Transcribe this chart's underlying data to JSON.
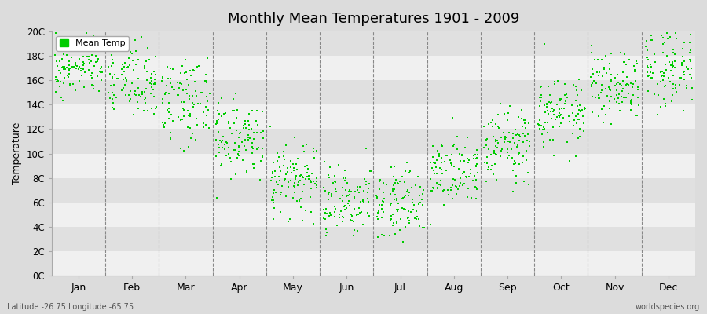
{
  "title": "Monthly Mean Temperatures 1901 - 2009",
  "ylabel": "Temperature",
  "xlabel_bottom_left": "Latitude -26.75 Longitude -65.75",
  "xlabel_bottom_right": "worldspecies.org",
  "legend_label": "Mean Temp",
  "marker_color": "#00CC00",
  "marker_size": 4.0,
  "background_color": "#DCDCDC",
  "plot_bg_color": "#F0F0F0",
  "band_color_light": "#F0F0F0",
  "band_color_dark": "#E0E0E0",
  "ytick_labels": [
    "0C",
    "2C",
    "4C",
    "6C",
    "8C",
    "10C",
    "12C",
    "14C",
    "16C",
    "18C",
    "20C"
  ],
  "ytick_values": [
    0,
    2,
    4,
    6,
    8,
    10,
    12,
    14,
    16,
    18,
    20
  ],
  "month_names": [
    "Jan",
    "Feb",
    "Mar",
    "Apr",
    "May",
    "Jun",
    "Jul",
    "Aug",
    "Sep",
    "Oct",
    "Nov",
    "Dec"
  ],
  "ylim": [
    0,
    20
  ],
  "xlim": [
    0,
    12
  ],
  "seed": 42,
  "monthly_mean_temps": [
    17.0,
    16.0,
    14.5,
    11.0,
    8.0,
    6.0,
    6.0,
    8.5,
    10.5,
    13.5,
    15.5,
    17.0
  ],
  "monthly_spread": [
    1.2,
    1.3,
    1.5,
    1.3,
    1.2,
    1.2,
    1.3,
    1.2,
    1.3,
    1.3,
    1.3,
    1.3
  ],
  "monthly_extra_spread": [
    0.5,
    0.5,
    0.7,
    0.7,
    0.7,
    0.8,
    0.8,
    0.7,
    0.7,
    0.7,
    0.6,
    0.6
  ],
  "n_points_per_month": 109
}
